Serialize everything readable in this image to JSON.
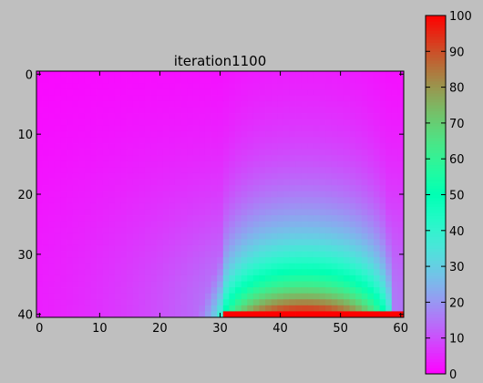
{
  "chart_data": {
    "type": "heatmap",
    "title": "iteration1100",
    "xlabel": "",
    "ylabel": "",
    "grid": false,
    "colormap": "rainbow",
    "shape": {
      "rows": 41,
      "cols": 61
    },
    "xlim": [
      -0.5,
      60.5
    ],
    "ylim": [
      40.5,
      -0.5
    ],
    "x_ticks": [
      "0",
      "10",
      "20",
      "30",
      "40",
      "50",
      "60"
    ],
    "y_ticks": [
      "0",
      "10",
      "20",
      "30",
      "40"
    ],
    "colorbar": {
      "range": [
        0,
        100
      ],
      "ticks": [
        "0",
        "10",
        "20",
        "30",
        "40",
        "50",
        "60",
        "70",
        "80",
        "90",
        "100"
      ]
    },
    "boundary": {
      "row": 40,
      "cols_from": 31,
      "cols_to": 60,
      "value": 100
    },
    "field": {
      "description_values": "Temperature-like field: 0 almost everywhere, hot strip (100) along bottom row cols 31-60, diffusing upward into a dome centered near col 44.",
      "peak_center_col": 44,
      "samples": [
        {
          "row": 39,
          "col": 40,
          "value": 88
        },
        {
          "row": 37,
          "col": 43,
          "value": 72
        },
        {
          "row": 35,
          "col": 44,
          "value": 55
        },
        {
          "row": 32,
          "col": 44,
          "value": 40
        },
        {
          "row": 28,
          "col": 44,
          "value": 28
        },
        {
          "row": 22,
          "col": 44,
          "value": 15
        },
        {
          "row": 15,
          "col": 44,
          "value": 7
        },
        {
          "row": 5,
          "col": 44,
          "value": 2
        },
        {
          "row": 38,
          "col": 31,
          "value": 35
        },
        {
          "row": 38,
          "col": 59,
          "value": 35
        },
        {
          "row": 39,
          "col": 25,
          "value": 10
        },
        {
          "row": 20,
          "col": 20,
          "value": 3
        }
      ]
    }
  }
}
